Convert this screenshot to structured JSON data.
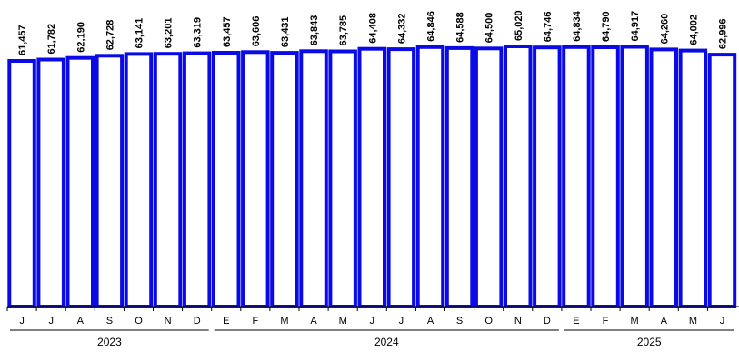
{
  "chart_data": {
    "type": "bar",
    "categories": [
      "J",
      "J",
      "A",
      "S",
      "O",
      "N",
      "D",
      "E",
      "F",
      "M",
      "A",
      "M",
      "J",
      "J",
      "A",
      "S",
      "O",
      "N",
      "D",
      "E",
      "F",
      "M",
      "A",
      "M",
      "J"
    ],
    "values": [
      61457,
      61782,
      62190,
      62728,
      63141,
      63201,
      63319,
      63457,
      63606,
      63431,
      63843,
      63785,
      64408,
      64332,
      64846,
      64588,
      64500,
      65020,
      64746,
      64834,
      64790,
      64917,
      64260,
      64002,
      62996
    ],
    "value_labels": [
      "61,457",
      "61,782",
      "62,190",
      "62,728",
      "63,141",
      "63,201",
      "63,319",
      "63,457",
      "63,606",
      "63,431",
      "63,843",
      "63,785",
      "64,408",
      "64,332",
      "64,846",
      "64,588",
      "64,500",
      "65,020",
      "64,746",
      "64,834",
      "64,790",
      "64,917",
      "64,260",
      "64,002",
      "62,996"
    ],
    "year_groups": [
      {
        "label": "2023",
        "count": 7
      },
      {
        "label": "2024",
        "count": 12
      },
      {
        "label": "2025",
        "count": 6
      }
    ],
    "title": "",
    "xlabel": "",
    "ylabel": "",
    "grid": false,
    "legend": "none",
    "colors": {
      "bar_stroke": "#0a0ae6",
      "bar_fill": "#ffffff"
    }
  }
}
